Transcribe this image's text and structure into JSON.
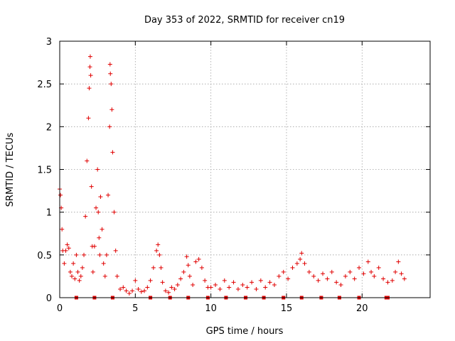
{
  "chart_data": {
    "type": "scatter",
    "title": "Day 353 of 2022, SRMTID for receiver cn19",
    "xlabel": "GPS time / hours",
    "ylabel": "SRMTID / TECUs",
    "xlim": [
      0,
      24.5
    ],
    "ylim": [
      0,
      3
    ],
    "xticks": [
      0,
      5,
      10,
      15,
      20
    ],
    "yticks": [
      0,
      0.5,
      1,
      1.5,
      2,
      2.5,
      3
    ],
    "xtick_labels": [
      "0",
      "5",
      "10",
      "15",
      "20"
    ],
    "ytick_labels": [
      "0",
      "0.5",
      "1",
      "1.5",
      "2",
      "2.5",
      "3"
    ],
    "grid": true,
    "marker": "+",
    "color": "#e00000",
    "series": [
      {
        "name": "SRMTID",
        "x": [
          0.0,
          0.05,
          0.1,
          0.15,
          0.2,
          0.3,
          0.4,
          0.5,
          0.6,
          0.7,
          0.8,
          0.9,
          1.0,
          1.1,
          1.2,
          1.3,
          1.4,
          1.5,
          1.6,
          1.7,
          1.8,
          1.9,
          1.95,
          2.0,
          2.02,
          2.05,
          2.1,
          2.15,
          2.2,
          2.3,
          2.4,
          2.5,
          2.55,
          2.6,
          2.65,
          2.7,
          2.8,
          2.9,
          3.0,
          3.1,
          3.2,
          3.3,
          3.33,
          3.35,
          3.4,
          3.45,
          3.5,
          3.6,
          3.7,
          3.8,
          4.0,
          4.2,
          4.4,
          4.6,
          4.8,
          5.0,
          5.2,
          5.4,
          5.6,
          5.8,
          6.0,
          6.2,
          6.4,
          6.5,
          6.6,
          6.7,
          6.8,
          7.0,
          7.2,
          7.4,
          7.6,
          7.8,
          8.0,
          8.2,
          8.4,
          8.5,
          8.6,
          8.8,
          9.0,
          9.2,
          9.4,
          9.6,
          9.8,
          10.0,
          10.3,
          10.6,
          10.9,
          11.2,
          11.5,
          11.8,
          12.1,
          12.4,
          12.7,
          13.0,
          13.3,
          13.6,
          13.9,
          14.2,
          14.5,
          14.8,
          15.1,
          15.4,
          15.7,
          15.9,
          16.0,
          16.2,
          16.5,
          16.8,
          17.1,
          17.4,
          17.7,
          18.0,
          18.3,
          18.6,
          18.9,
          19.2,
          19.5,
          19.8,
          20.1,
          20.4,
          20.6,
          20.8,
          21.1,
          21.4,
          21.7,
          22.0,
          22.2,
          22.4,
          22.6,
          22.8
        ],
        "y": [
          1.27,
          1.2,
          1.05,
          0.8,
          0.55,
          0.4,
          0.55,
          0.62,
          0.58,
          0.3,
          0.25,
          0.4,
          0.22,
          0.5,
          0.3,
          0.2,
          0.25,
          0.35,
          0.5,
          0.95,
          1.6,
          2.1,
          2.45,
          2.7,
          2.82,
          2.6,
          1.3,
          0.6,
          0.3,
          0.6,
          1.05,
          1.5,
          1.0,
          0.7,
          0.5,
          1.18,
          0.8,
          0.4,
          0.25,
          0.5,
          1.2,
          2.0,
          2.73,
          2.62,
          2.5,
          2.2,
          1.7,
          1.0,
          0.55,
          0.25,
          0.1,
          0.12,
          0.08,
          0.05,
          0.08,
          0.2,
          0.1,
          0.07,
          0.08,
          0.12,
          0.2,
          0.35,
          0.55,
          0.62,
          0.5,
          0.35,
          0.18,
          0.08,
          0.06,
          0.12,
          0.1,
          0.15,
          0.22,
          0.3,
          0.48,
          0.38,
          0.25,
          0.15,
          0.42,
          0.45,
          0.35,
          0.2,
          0.12,
          0.12,
          0.15,
          0.1,
          0.2,
          0.12,
          0.18,
          0.1,
          0.15,
          0.12,
          0.18,
          0.1,
          0.2,
          0.12,
          0.18,
          0.15,
          0.25,
          0.3,
          0.22,
          0.35,
          0.4,
          0.45,
          0.52,
          0.4,
          0.3,
          0.25,
          0.2,
          0.28,
          0.22,
          0.3,
          0.18,
          0.15,
          0.25,
          0.3,
          0.22,
          0.35,
          0.28,
          0.42,
          0.3,
          0.25,
          0.35,
          0.22,
          0.18,
          0.2,
          0.3,
          0.42,
          0.28,
          0.22
        ],
        "gap_marks_x": [
          1.1,
          2.3,
          3.5,
          6.0,
          7.3,
          8.5,
          9.8,
          11.0,
          12.3,
          13.5,
          14.8,
          16.0,
          17.3,
          18.5,
          19.8,
          21.6,
          21.7
        ]
      }
    ]
  }
}
